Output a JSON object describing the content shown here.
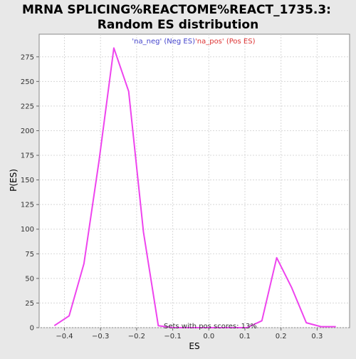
{
  "chart_data": {
    "type": "line",
    "title_lines": [
      "MRNA SPLICING%REACTOME%REACT_1735.3:",
      "Random ES distribution"
    ],
    "xlabel": "ES",
    "ylabel": "P(ES)",
    "xlim": [
      -0.47,
      0.39
    ],
    "ylim": [
      0,
      298
    ],
    "xticks": [
      -0.4,
      -0.3,
      -0.2,
      -0.1,
      0.0,
      0.1,
      0.2,
      0.3
    ],
    "xtick_labels": [
      "−0.4",
      "−0.3",
      "−0.2",
      "−0.1",
      "0.0",
      "0.1",
      "0.2",
      "0.3"
    ],
    "yticks": [
      0,
      25,
      50,
      75,
      100,
      125,
      150,
      175,
      200,
      225,
      250,
      275
    ],
    "ytick_labels": [
      "0",
      "25",
      "50",
      "75",
      "100",
      "125",
      "150",
      "175",
      "200",
      "225",
      "250",
      "275"
    ],
    "grid": true,
    "legend_position": "top-center",
    "legend": [
      {
        "label": "'na_neg' (Neg ES)",
        "color": "#4444cc"
      },
      {
        "label": "'na_pos' (Pos ES)",
        "color": "#dd3333"
      }
    ],
    "annotation": "Sets with pos scores: 13%",
    "series": [
      {
        "color": "#ee44ee",
        "x": [
          -0.428,
          -0.387,
          -0.346,
          -0.304,
          -0.263,
          -0.222,
          -0.181,
          -0.14,
          -0.099,
          -0.058,
          -0.017,
          0.024,
          0.065,
          0.106,
          0.147,
          0.188,
          0.229,
          0.27,
          0.311,
          0.352
        ],
        "y": [
          2,
          12,
          65,
          170,
          284,
          240,
          97,
          2,
          0,
          0,
          0,
          0,
          0,
          0,
          7,
          71,
          41,
          5,
          1,
          1
        ]
      }
    ]
  }
}
